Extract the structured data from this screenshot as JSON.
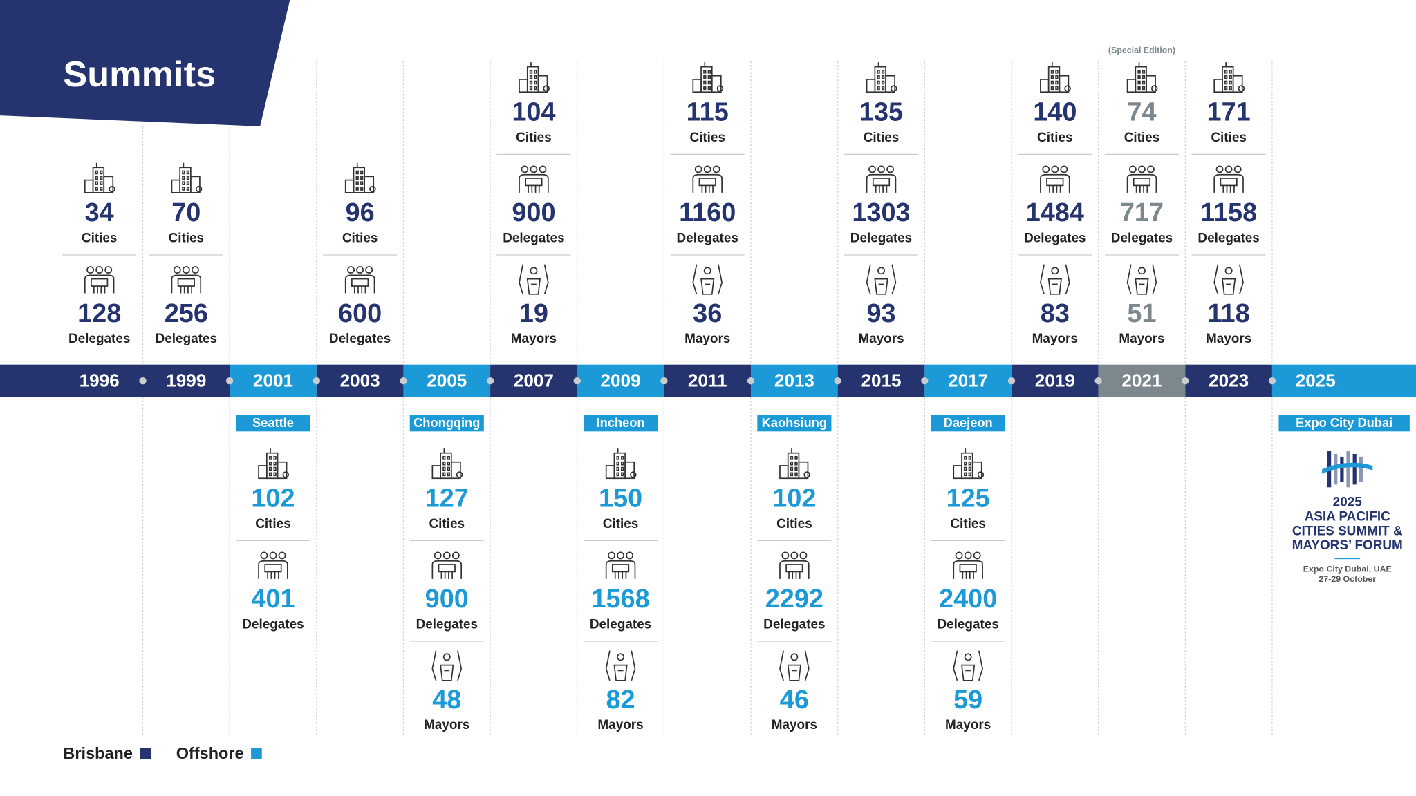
{
  "header": {
    "title": "Summits"
  },
  "legend": [
    {
      "label": "Brisbane",
      "color": "#25336f"
    },
    {
      "label": "Offshore",
      "color": "#1b9ad7"
    }
  ],
  "summits": [
    {
      "year": 1996,
      "host": "brisbane",
      "stats": [
        {
          "value": 34,
          "label": "Cities"
        },
        {
          "value": 128,
          "label": "Delegates"
        }
      ]
    },
    {
      "year": 1999,
      "host": "brisbane",
      "stats": [
        {
          "value": 70,
          "label": "Cities"
        },
        {
          "value": 256,
          "label": "Delegates"
        }
      ]
    },
    {
      "year": 2001,
      "host": "offshore",
      "city": "Seattle",
      "stats": [
        {
          "value": 102,
          "label": "Cities"
        },
        {
          "value": 401,
          "label": "Delegates"
        }
      ]
    },
    {
      "year": 2003,
      "host": "brisbane",
      "stats": [
        {
          "value": 96,
          "label": "Cities"
        },
        {
          "value": 600,
          "label": "Delegates"
        }
      ]
    },
    {
      "year": 2005,
      "host": "offshore",
      "city": "Chongqing",
      "stats": [
        {
          "value": 127,
          "label": "Cities"
        },
        {
          "value": 900,
          "label": "Delegates"
        },
        {
          "value": 48,
          "label": "Mayors"
        }
      ]
    },
    {
      "year": 2007,
      "host": "brisbane",
      "stats": [
        {
          "value": 104,
          "label": "Cities"
        },
        {
          "value": 900,
          "label": "Delegates"
        },
        {
          "value": 19,
          "label": "Mayors"
        }
      ]
    },
    {
      "year": 2009,
      "host": "offshore",
      "city": "Incheon",
      "stats": [
        {
          "value": 150,
          "label": "Cities"
        },
        {
          "value": 1568,
          "label": "Delegates"
        },
        {
          "value": 82,
          "label": "Mayors"
        }
      ]
    },
    {
      "year": 2011,
      "host": "brisbane",
      "stats": [
        {
          "value": 115,
          "label": "Cities"
        },
        {
          "value": 1160,
          "label": "Delegates"
        },
        {
          "value": 36,
          "label": "Mayors"
        }
      ]
    },
    {
      "year": 2013,
      "host": "offshore",
      "city": "Kaohsiung",
      "stats": [
        {
          "value": 102,
          "label": "Cities"
        },
        {
          "value": 2292,
          "label": "Delegates"
        },
        {
          "value": 46,
          "label": "Mayors"
        }
      ]
    },
    {
      "year": 2015,
      "host": "brisbane",
      "stats": [
        {
          "value": 135,
          "label": "Cities"
        },
        {
          "value": 1303,
          "label": "Delegates"
        },
        {
          "value": 93,
          "label": "Mayors"
        }
      ]
    },
    {
      "year": 2017,
      "host": "offshore",
      "city": "Daejeon",
      "stats": [
        {
          "value": 125,
          "label": "Cities"
        },
        {
          "value": 2400,
          "label": "Delegates"
        },
        {
          "value": 59,
          "label": "Mayors"
        }
      ]
    },
    {
      "year": 2019,
      "host": "brisbane",
      "stats": [
        {
          "value": 140,
          "label": "Cities"
        },
        {
          "value": 1484,
          "label": "Delegates"
        },
        {
          "value": 83,
          "label": "Mayors"
        }
      ]
    },
    {
      "year": 2021,
      "host": "brisbane",
      "note": "(Special Edition)",
      "color": "#7c888d",
      "stats": [
        {
          "value": 74,
          "label": "Cities"
        },
        {
          "value": 717,
          "label": "Delegates"
        },
        {
          "value": 51,
          "label": "Mayors"
        }
      ]
    },
    {
      "year": 2023,
      "host": "brisbane",
      "stats": [
        {
          "value": 171,
          "label": "Cities"
        },
        {
          "value": 1158,
          "label": "Delegates"
        },
        {
          "value": 118,
          "label": "Mayors"
        }
      ]
    },
    {
      "year": 2025,
      "host": "offshore",
      "city": "Expo City Dubai",
      "logo": {
        "lines": [
          "2025",
          "ASIA PACIFIC",
          "CITIES SUMMIT &",
          "MAYORS’ FORUM"
        ],
        "place": "Expo City Dubai, UAE",
        "dates": "27-29 October"
      }
    }
  ]
}
